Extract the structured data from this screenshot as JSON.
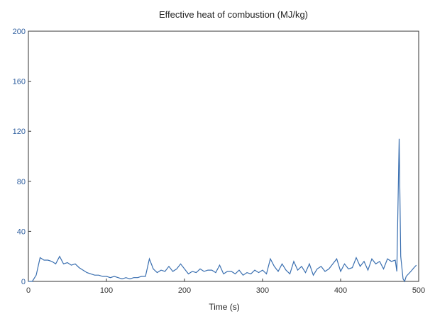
{
  "chart_data": {
    "type": "line",
    "title": "Effective heat of combustion (MJ/kg)",
    "xlabel": "Time (s)",
    "ylabel": "",
    "xlim": [
      0,
      500
    ],
    "ylim": [
      0,
      200
    ],
    "x_ticks": [
      0,
      100,
      200,
      300,
      400,
      500
    ],
    "x_tick_labels": [
      "0",
      "100",
      "200",
      "300",
      "400",
      "500"
    ],
    "y_ticks": [
      0,
      40,
      80,
      120,
      160,
      200
    ],
    "y_tick_labels": [
      "0",
      "40",
      "80",
      "120",
      "160",
      "200"
    ],
    "grid": false,
    "series_color": "#3a6fb0",
    "series": [
      {
        "x": [
          0,
          5,
          10,
          15,
          20,
          25,
          30,
          35,
          40,
          45,
          50,
          55,
          60,
          65,
          70,
          75,
          80,
          85,
          90,
          95,
          100,
          105,
          110,
          115,
          120,
          125,
          130,
          135,
          140,
          145,
          150,
          155,
          160,
          165,
          170,
          175,
          180,
          185,
          190,
          195,
          200,
          205,
          210,
          215,
          220,
          225,
          230,
          235,
          240,
          245,
          250,
          255,
          260,
          265,
          270,
          275,
          280,
          285,
          290,
          295,
          300,
          305,
          310,
          315,
          320,
          325,
          330,
          335,
          340,
          345,
          350,
          355,
          360,
          365,
          370,
          375,
          380,
          385,
          390,
          395,
          400,
          405,
          410,
          415,
          420,
          425,
          430,
          435,
          440,
          445,
          450,
          455,
          460,
          465,
          470,
          472,
          475,
          477,
          480,
          482,
          484,
          487,
          490,
          494,
          497
        ],
        "y": [
          0,
          0,
          5,
          19,
          17,
          17,
          16,
          14,
          20,
          14,
          15,
          13,
          14,
          11,
          9,
          7,
          6,
          5,
          5,
          4,
          4,
          3,
          4,
          3,
          2,
          3,
          2,
          3,
          3,
          4,
          4,
          18,
          10,
          7,
          9,
          8,
          12,
          8,
          10,
          14,
          10,
          6,
          8,
          7,
          10,
          8,
          9,
          9,
          7,
          13,
          6,
          8,
          8,
          6,
          9,
          5,
          7,
          6,
          9,
          7,
          9,
          6,
          18,
          12,
          8,
          14,
          9,
          6,
          16,
          9,
          12,
          7,
          14,
          5,
          10,
          12,
          8,
          10,
          14,
          18,
          8,
          14,
          10,
          11,
          19,
          12,
          16,
          9,
          18,
          14,
          16,
          10,
          18,
          16,
          17,
          8,
          114,
          20,
          2,
          0,
          4,
          6,
          8,
          11,
          13
        ]
      }
    ]
  }
}
